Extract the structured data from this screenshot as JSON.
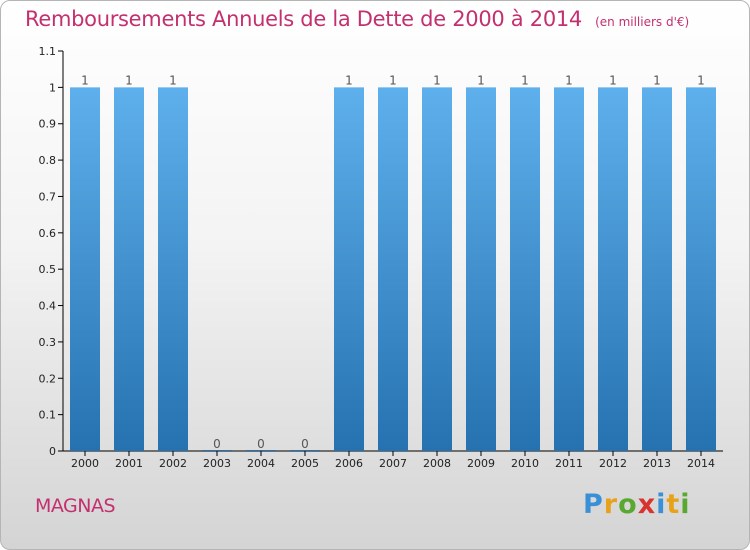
{
  "header": {
    "title": "Remboursements Annuels de la Dette de 2000 à 2014",
    "unit": "(en milliers d'€)"
  },
  "commune": "MAGNAS",
  "logo": {
    "text": "Proxiti",
    "letter_colors": [
      "#3a8fd6",
      "#e8a21a",
      "#5aa832",
      "#d8332f",
      "#3a8fd6",
      "#e8a21a",
      "#5aa832"
    ]
  },
  "colors": {
    "title": "#c4306f",
    "bar_top": "#5eb0ec",
    "bar_bottom": "#2672b0",
    "axis": "#000000",
    "tick_text": "#222222"
  },
  "chart_data": {
    "type": "bar",
    "categories": [
      "2000",
      "2001",
      "2002",
      "2003",
      "2004",
      "2005",
      "2006",
      "2007",
      "2008",
      "2009",
      "2010",
      "2011",
      "2012",
      "2013",
      "2014"
    ],
    "values": [
      1,
      1,
      1,
      0,
      0,
      0,
      1,
      1,
      1,
      1,
      1,
      1,
      1,
      1,
      1
    ],
    "data_labels": [
      "1",
      "1",
      "1",
      "0",
      "0",
      "0",
      "1",
      "1",
      "1",
      "1",
      "1",
      "1",
      "1",
      "1",
      "1"
    ],
    "ylim": [
      0,
      1.1
    ],
    "yticks": [
      0,
      0.1,
      0.2,
      0.3,
      0.4,
      0.5,
      0.6,
      0.7,
      0.8,
      0.9,
      1,
      1.1
    ],
    "ytick_labels": [
      "0",
      "0.1",
      "0.2",
      "0.3",
      "0.4",
      "0.5",
      "0.6",
      "0.7",
      "0.8",
      "0.9",
      "1",
      "1.1"
    ],
    "grid": false,
    "legend": "none"
  }
}
